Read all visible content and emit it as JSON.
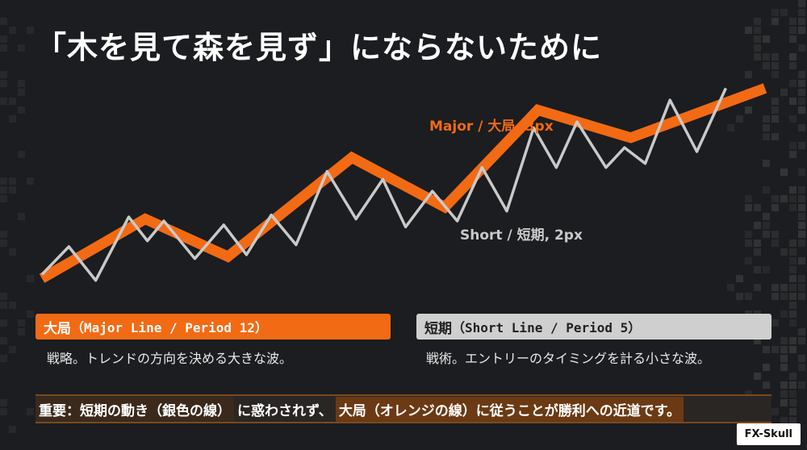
{
  "title": "「木を見て森を見ず」にならないために",
  "chart_data": {
    "type": "line",
    "x": [
      0,
      1,
      2,
      3,
      4,
      5,
      6,
      7,
      8,
      9,
      10,
      11,
      12,
      13,
      14,
      15,
      16,
      17,
      18,
      19,
      20,
      21,
      22,
      23,
      24,
      25,
      26,
      27,
      28,
      29,
      30,
      31,
      32,
      33,
      34,
      35
    ],
    "series": [
      {
        "name": "Major / 大局, 3px",
        "color": "#f26a14",
        "points": [
          [
            0,
            6
          ],
          [
            5,
            36
          ],
          [
            9,
            17
          ],
          [
            15,
            67
          ],
          [
            19.5,
            42
          ],
          [
            24,
            91
          ],
          [
            28.5,
            77
          ],
          [
            35,
            102
          ]
        ]
      },
      {
        "name": "Short / 短期, 2px",
        "color": "#c9c9c9",
        "points": [
          [
            0,
            8
          ],
          [
            1.3,
            22
          ],
          [
            2.6,
            5
          ],
          [
            4.2,
            37
          ],
          [
            5.1,
            25
          ],
          [
            5.9,
            35
          ],
          [
            7.4,
            16
          ],
          [
            8.8,
            33
          ],
          [
            9.9,
            18
          ],
          [
            11.1,
            38
          ],
          [
            12.3,
            23
          ],
          [
            13.8,
            60
          ],
          [
            15.2,
            36
          ],
          [
            16.5,
            56
          ],
          [
            17.6,
            32
          ],
          [
            18.9,
            50
          ],
          [
            20.1,
            35
          ],
          [
            21.3,
            62
          ],
          [
            22.5,
            40
          ],
          [
            23.8,
            82
          ],
          [
            24.9,
            62
          ],
          [
            25.9,
            85
          ],
          [
            27.3,
            62
          ],
          [
            28.2,
            72
          ],
          [
            29.2,
            64
          ],
          [
            30.4,
            96
          ],
          [
            31.7,
            70
          ],
          [
            33.1,
            102
          ]
        ]
      }
    ],
    "xlim": [
      0,
      35
    ],
    "ylim": [
      0,
      105
    ]
  },
  "labels": {
    "major": "Major / 大局, 3px",
    "short": "Short / 短期, 2px"
  },
  "boxes": {
    "major": {
      "title": "大局",
      "sub": "（Major Line / Period 12）",
      "desc": "戦略。トレンドの方向を決める大きな波。",
      "color": "#f26a14"
    },
    "short": {
      "title": "短期",
      "sub": "（Short Line / Period 5）",
      "desc": "戦術。エントリーのタイミングを計る小さな波。",
      "color": "#cfcfcf"
    }
  },
  "banner": {
    "part1": "重要：短期の動き（銀色の線）",
    "part2": "に惑わされず、",
    "part3": "大局（オレンジの線）に従うことが勝利への近道です。"
  },
  "brand": "FX-Skull"
}
